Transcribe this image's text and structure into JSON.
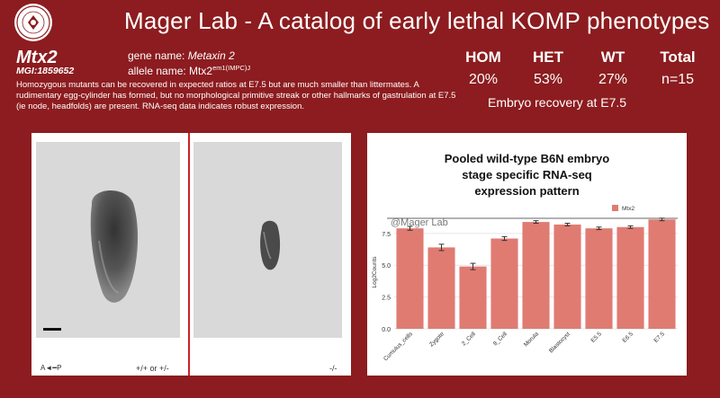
{
  "header": {
    "title": "Mager Lab - A catalog of early lethal KOMP phenotypes"
  },
  "gene": {
    "symbol": "Mtx2",
    "mgi_id": "MGI:1859652",
    "gene_name_label": "gene name: ",
    "gene_name": "Metaxin 2",
    "allele_name_label": "allele name: ",
    "allele_base": "Mtx2",
    "allele_superscript": "em1(IMPC)J"
  },
  "description": "Homozygous mutants can be recovered in expected ratios at E7.5 but are much smaller than littermates.  A rudimentary egg-cylinder has formed, but no morphological primitive streak or other hallmarks of gastrulation at E7.5 (ie node, headfolds) are present. RNA-seq data indicates robust expression.",
  "stats": {
    "headers": [
      "HOM",
      "HET",
      "WT",
      "Total"
    ],
    "values": [
      "20%",
      "53%",
      "27%",
      "n=15"
    ],
    "caption": "Embryo recovery at E7.5"
  },
  "embryo_panel": {
    "axis_label": "A◄━P",
    "genotype_left": "+/+ or +/-",
    "genotype_right": "-/-"
  },
  "chart_title_lines": [
    "Pooled wild-type B6N embryo",
    "stage specific RNA-seq",
    "expression pattern"
  ],
  "chart_data": {
    "type": "bar",
    "title": "Pooled wild-type B6N embryo stage specific RNA-seq expression pattern",
    "watermark": "@Mager Lab",
    "legend": "Mtx2",
    "legend_position": "top-right",
    "ylabel": "Log2Counts",
    "xlabel": "",
    "ylim": [
      0,
      8.9
    ],
    "yticks": [
      "0.0",
      "2.5",
      "5.0",
      "7.5"
    ],
    "ytick_values": [
      0,
      2.5,
      5.0,
      7.5
    ],
    "categories": [
      "Cumulus_cells",
      "Zygote",
      "2_Cell",
      "8_Cell",
      "Morula",
      "Blastocyst",
      "E5.5",
      "E6.5",
      "E7.5"
    ],
    "series": [
      {
        "name": "Mtx2",
        "values": [
          7.9,
          6.4,
          4.9,
          7.1,
          8.4,
          8.2,
          7.9,
          8.0,
          8.6
        ],
        "errors": [
          0.15,
          0.25,
          0.25,
          0.15,
          0.1,
          0.1,
          0.1,
          0.1,
          0.1
        ]
      }
    ],
    "colors": {
      "bar": "#e07b72",
      "error": "#333333"
    },
    "grid": true
  },
  "colors": {
    "background": "#8c1c1f",
    "divider": "#cc2222"
  }
}
